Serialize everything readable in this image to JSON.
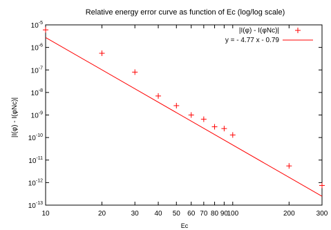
{
  "chart_data": {
    "type": "scatter",
    "title": "Relative energy error curve as function of Ec (log/log scale)",
    "xlabel": "Ec",
    "ylabel": "|I(φ) - I(φNc)|",
    "xscale": "log",
    "yscale": "log",
    "xlim": [
      10,
      300
    ],
    "ylim": [
      1e-13,
      1e-05
    ],
    "grid": false,
    "legend_position": "top-right",
    "x_ticks": [
      10,
      20,
      30,
      40,
      50,
      60,
      70,
      80,
      90,
      100,
      200,
      300
    ],
    "x_tick_labels": [
      "10",
      "20",
      "30",
      "40",
      "50",
      "60",
      "70",
      "80",
      "90",
      "100",
      "200",
      "300"
    ],
    "y_tick_exponents": [
      -13,
      -12,
      -11,
      -10,
      -9,
      -8,
      -7,
      -6,
      -5
    ],
    "y_tick_base": "10",
    "series": [
      {
        "name": "|I(φ) - I(φNc)|",
        "kind": "points",
        "marker": "plus",
        "color": "#ff0000",
        "x": [
          10,
          20,
          30,
          40,
          50,
          60,
          70,
          80,
          90,
          100,
          200,
          300
        ],
        "y": [
          6e-06,
          5.5e-07,
          8e-08,
          7e-09,
          2.6e-09,
          1e-09,
          6.5e-10,
          3e-10,
          2.5e-10,
          1.3e-10,
          5.5e-12,
          7.5e-13
        ]
      },
      {
        "name": "y = - 4.77 x - 0.79",
        "kind": "line",
        "color": "#ff0000",
        "slope": -4.77,
        "intercept": -0.79,
        "x": [
          10,
          300
        ]
      }
    ]
  }
}
